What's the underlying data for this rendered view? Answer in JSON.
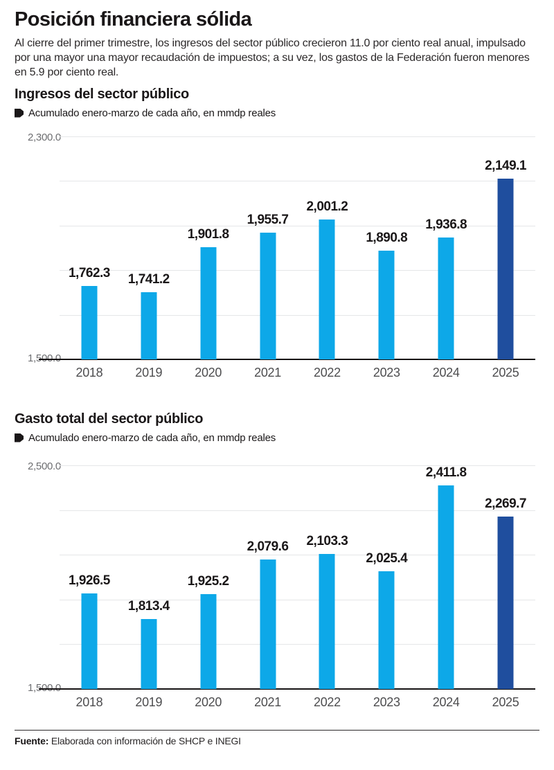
{
  "header": {
    "title": "Posición financiera sólida",
    "intro": "Al cierre del primer trimestre, los ingresos del sector público crecieron 11.0 por ciento real anual, impulsado por una mayor una mayor recaudación de impuestos; a su vez, los gastos de la Federación fueron menores en 5.9 por ciento real."
  },
  "chart_data": [
    {
      "type": "bar",
      "title": "Ingresos del sector público",
      "subtitle": "Acumulado enero-marzo de cada año, en mmdp reales",
      "categories": [
        "2018",
        "2019",
        "2020",
        "2021",
        "2022",
        "2023",
        "2024",
        "2025"
      ],
      "values": [
        1762.3,
        1741.2,
        1901.8,
        1955.7,
        2001.2,
        1890.8,
        1936.8,
        2149.1
      ],
      "value_labels": [
        "1,762.3",
        "1,741.2",
        "1,901.8",
        "1,955.7",
        "2,001.2",
        "1,890.8",
        "1,936.8",
        "2,149.1"
      ],
      "ylim": [
        1500.0,
        2300.0
      ],
      "y_axis": {
        "max_label": "2,300.0",
        "min_label": "1,500.0"
      },
      "gridline_step": 160,
      "grid": true,
      "legend_position": "top-left",
      "highlight_index": 7,
      "bar_color": "#0da8e8",
      "highlight_color": "#1f4e9e"
    },
    {
      "type": "bar",
      "title": "Gasto total del sector público",
      "subtitle": "Acumulado enero-marzo de cada año, en mmdp reales",
      "categories": [
        "2018",
        "2019",
        "2020",
        "2021",
        "2022",
        "2023",
        "2024",
        "2025"
      ],
      "values": [
        1926.5,
        1813.4,
        1925.2,
        2079.6,
        2103.3,
        2025.4,
        2411.8,
        2269.7
      ],
      "value_labels": [
        "1,926.5",
        "1,813.4",
        "1,925.2",
        "2,079.6",
        "2,103.3",
        "2,025.4",
        "2,411.8",
        "2,269.7"
      ],
      "ylim": [
        1500.0,
        2500.0
      ],
      "y_axis": {
        "max_label": "2,500.0",
        "min_label": "1,500.0"
      },
      "gridline_step": 200,
      "grid": true,
      "legend_position": "top-left",
      "highlight_index": 7,
      "bar_color": "#0da8e8",
      "highlight_color": "#1f4e9e"
    }
  ],
  "footer": {
    "source_label": "Fuente:",
    "source_text": " Elaborada con información de SHCP e INEGI"
  },
  "colors": {
    "bar_light_blue": "#0da8e8",
    "bar_dark_blue": "#1f4e9e",
    "gridline": "#e5e6e8",
    "axis_line": "#161314",
    "text_dark": "#1a1718",
    "axis_text_gray": "#6d6e71"
  }
}
